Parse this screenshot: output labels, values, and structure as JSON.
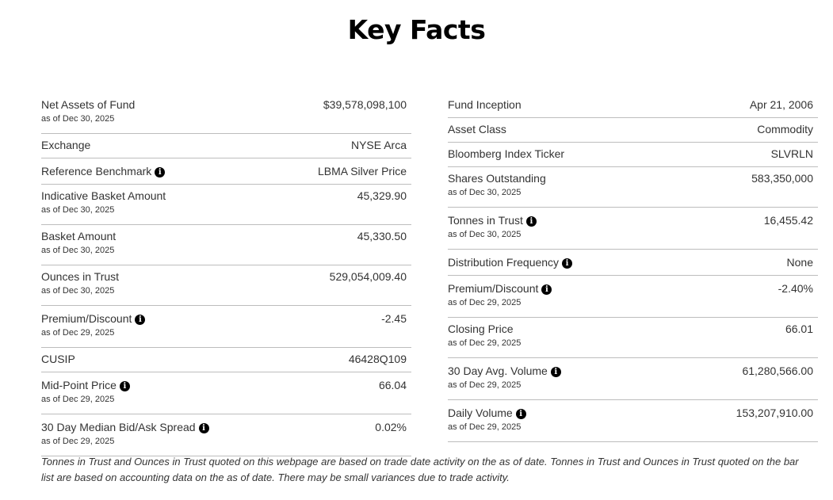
{
  "title": "Key Facts",
  "left": [
    {
      "label": "Net Assets of Fund",
      "sub": "as of Dec 30, 2025",
      "value": "$39,578,098,100",
      "info": false
    },
    {
      "label": "Exchange",
      "sub": "",
      "value": "NYSE Arca",
      "info": false
    },
    {
      "label": "Reference Benchmark",
      "sub": "",
      "value": "LBMA Silver Price",
      "info": true
    },
    {
      "label": "Indicative Basket Amount",
      "sub": "as of Dec 30, 2025",
      "value": "45,329.90",
      "info": false
    },
    {
      "label": "Basket Amount",
      "sub": "as of Dec 30, 2025",
      "value": "45,330.50",
      "info": false
    },
    {
      "label": "Ounces in Trust",
      "sub": "as of Dec 30, 2025",
      "value": "529,054,009.40",
      "info": false
    },
    {
      "label": "Premium/Discount",
      "sub": "as of Dec 29, 2025",
      "value": "-2.45",
      "info": true
    },
    {
      "label": "CUSIP",
      "sub": "",
      "value": "46428Q109",
      "info": false
    },
    {
      "label": "Mid-Point Price",
      "sub": "as of Dec 29, 2025",
      "value": "66.04",
      "info": true
    },
    {
      "label": "30 Day Median Bid/Ask Spread",
      "sub": "as of Dec 29, 2025",
      "value": "0.02%",
      "info": true
    }
  ],
  "right": [
    {
      "label": "Fund Inception",
      "sub": "",
      "value": "Apr 21, 2006",
      "info": false
    },
    {
      "label": "Asset Class",
      "sub": "",
      "value": "Commodity",
      "info": false
    },
    {
      "label": "Bloomberg Index Ticker",
      "sub": "",
      "value": "SLVRLN",
      "info": false
    },
    {
      "label": "Shares Outstanding",
      "sub": "as of Dec 30, 2025",
      "value": "583,350,000",
      "info": false
    },
    {
      "label": "Tonnes in Trust",
      "sub": "as of Dec 30, 2025",
      "value": "16,455.42",
      "info": true
    },
    {
      "label": "Distribution Frequency",
      "sub": "",
      "value": "None",
      "info": true
    },
    {
      "label": "Premium/Discount",
      "sub": "as of Dec 29, 2025",
      "value": "-2.40%",
      "info": true
    },
    {
      "label": "Closing Price",
      "sub": "as of Dec 29, 2025",
      "value": "66.01",
      "info": false
    },
    {
      "label": "30 Day Avg. Volume",
      "sub": "as of Dec 29, 2025",
      "value": "61,280,566.00",
      "info": true
    },
    {
      "label": "Daily Volume",
      "sub": "as of Dec 29, 2025",
      "value": "153,207,910.00",
      "info": true
    }
  ],
  "info_glyph": "i",
  "footnote": "Tonnes in Trust and Ounces in Trust quoted on this webpage are based on trade date activity on the as of date. Tonnes in Trust and Ounces in Trust quoted on the bar list are based on accounting data on the as of date. There may be small variances due to trade activity."
}
